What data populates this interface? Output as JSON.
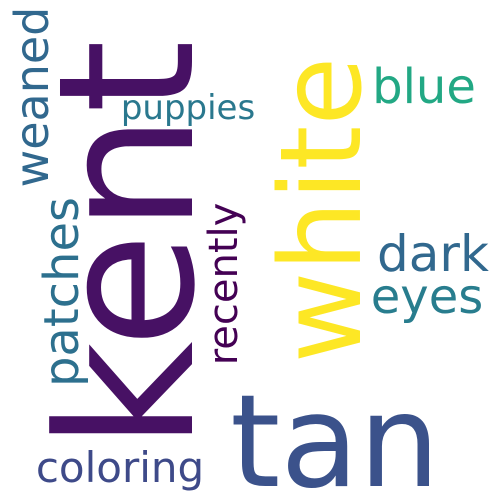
{
  "word_cloud": {
    "background": "#ffffff",
    "words": [
      {
        "id": "kent",
        "text": "kent",
        "color": "#471164"
      },
      {
        "id": "white",
        "text": "white",
        "color": "#fde725"
      },
      {
        "id": "tan",
        "text": "tan",
        "color": "#3b528b"
      },
      {
        "id": "blue",
        "text": "blue",
        "color": "#22a884"
      },
      {
        "id": "puppies",
        "text": "puppies",
        "color": "#2a788e"
      },
      {
        "id": "weaned",
        "text": "weaned",
        "color": "#31688e"
      },
      {
        "id": "recently",
        "text": "recently",
        "color": "#440154"
      },
      {
        "id": "patches",
        "text": "patches",
        "color": "#2d708e"
      },
      {
        "id": "dark",
        "text": "dark",
        "color": "#31688e"
      },
      {
        "id": "eyes",
        "text": "eyes",
        "color": "#287d8e"
      },
      {
        "id": "coloring",
        "text": "coloring",
        "color": "#3e4a89"
      }
    ]
  }
}
